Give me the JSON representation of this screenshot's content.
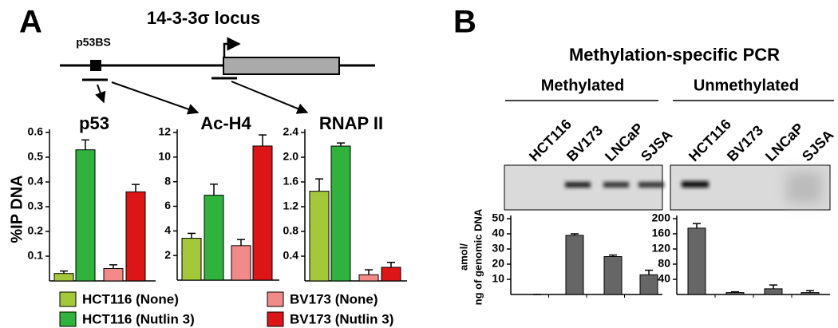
{
  "panel_a": {
    "label": "A",
    "locus_title": "14-3-3σ locus",
    "site_label": "p53BS",
    "y_label": "%IP DNA"
  },
  "panel_b": {
    "label": "B",
    "title": "Methylation-specific PCR",
    "y_label_lines": [
      "amol/",
      "ng of genomic DNA"
    ]
  },
  "legend": [
    {
      "name": "HCT116 (None)",
      "color": "#a3c93a"
    },
    {
      "name": "HCT116 (Nutlin 3)",
      "color": "#2fb33c"
    },
    {
      "name": "BV173 (None)",
      "color": "#f28a8a"
    },
    {
      "name": "BV173 (Nutlin 3)",
      "color": "#dc1616"
    }
  ],
  "chart_data": [
    {
      "type": "bar",
      "title": "p53",
      "values": [
        0.03,
        0.53,
        0.05,
        0.36
      ],
      "errors": [
        0.01,
        0.04,
        0.015,
        0.03
      ],
      "ylim": [
        0,
        0.6
      ],
      "yticks": [
        0.1,
        0.2,
        0.3,
        0.4,
        0.5,
        0.6
      ]
    },
    {
      "type": "bar",
      "title": "Ac-H4",
      "values": [
        3.4,
        6.9,
        2.8,
        10.9
      ],
      "errors": [
        0.4,
        0.9,
        0.5,
        0.9
      ],
      "ylim": [
        0,
        12
      ],
      "yticks": [
        2,
        4,
        6,
        8,
        10,
        12
      ]
    },
    {
      "type": "bar",
      "title": "RNAP II",
      "values": [
        1.45,
        2.18,
        0.1,
        0.22
      ],
      "errors": [
        0.2,
        0.05,
        0.08,
        0.08
      ],
      "ylim": [
        0,
        2.4
      ],
      "yticks": [
        0.4,
        0.8,
        1.2,
        1.6,
        {
          "value": 2,
          "label": "2.0"
        },
        2.4
      ]
    },
    {
      "type": "bar",
      "title": "Methylated",
      "categories": [
        "HCT116",
        "BV173",
        "LNCaP",
        "SJSA"
      ],
      "color": "#666666",
      "values": [
        0,
        39,
        25,
        13
      ],
      "errors": [
        0,
        1,
        1,
        3
      ],
      "ylim": [
        0,
        50
      ],
      "yticks": [
        10,
        20,
        30,
        40,
        50
      ]
    },
    {
      "type": "bar",
      "title": "Unmethylated",
      "categories": [
        "HCT116",
        "BV173",
        "LNCaP",
        "SJSA"
      ],
      "color": "#666666",
      "values": [
        175,
        5,
        15,
        5
      ],
      "errors": [
        12,
        2,
        10,
        5
      ],
      "ylim": [
        0,
        200
      ],
      "yticks": [
        40,
        80,
        120,
        160,
        200
      ]
    }
  ]
}
